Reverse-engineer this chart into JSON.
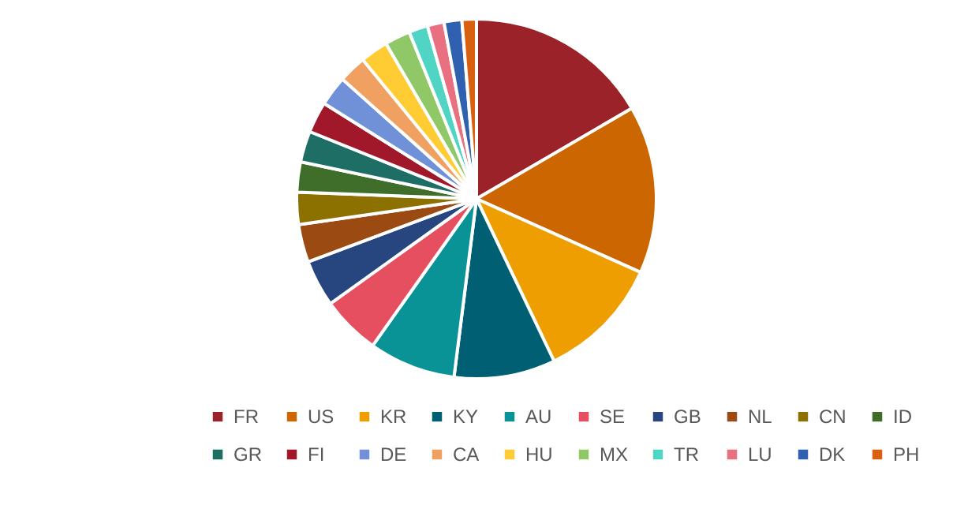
{
  "chart_data": {
    "type": "pie",
    "categories": [
      "FR",
      "US",
      "KR",
      "KY",
      "AU",
      "SE",
      "GB",
      "NL",
      "CN",
      "ID",
      "GR",
      "FI",
      "DE",
      "CA",
      "HU",
      "MX",
      "TR",
      "LU",
      "DK",
      "PH"
    ],
    "values": [
      16.6,
      15.1,
      11.2,
      9.1,
      7.8,
      5.3,
      4.2,
      3.4,
      2.9,
      2.7,
      2.8,
      2.8,
      2.7,
      2.5,
      2.5,
      2.3,
      1.7,
      1.5,
      1.6,
      1.3
    ],
    "colors": [
      "#9b2229",
      "#cc6600",
      "#ee9e00",
      "#005f73",
      "#0a9396",
      "#e64f60",
      "#27457f",
      "#9b4a12",
      "#8c7000",
      "#3f6e2a",
      "#1f6e66",
      "#a0182a",
      "#7090d8",
      "#f0a060",
      "#ffcc33",
      "#90c868",
      "#50d4c4",
      "#e87080",
      "#3060b0",
      "#d86010"
    ],
    "legend": "bottom"
  }
}
